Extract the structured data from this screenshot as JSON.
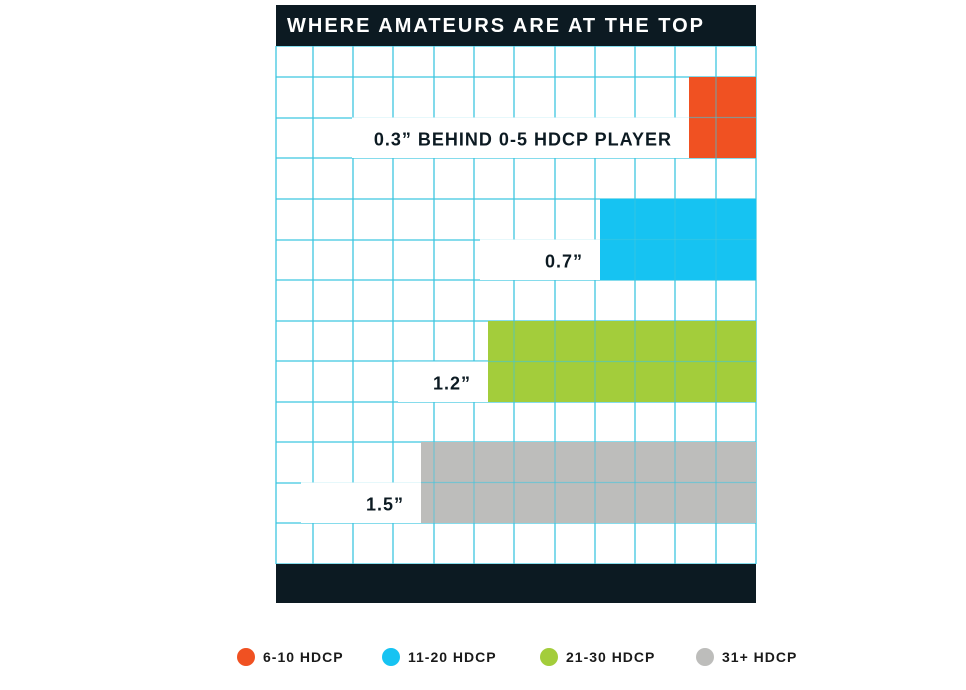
{
  "chart_data": {
    "type": "bar",
    "orientation": "horizontal",
    "title": "WHERE AMATEURS ARE AT THE TOP",
    "unit": "inches",
    "series": [
      {
        "name": "6-10 HDCP",
        "value": 0.3,
        "label": "0.3” BEHIND 0-5 HDCP PLAYER",
        "color": "#f05122"
      },
      {
        "name": "11-20 HDCP",
        "value": 0.7,
        "label": "0.7”",
        "color": "#16c3f2"
      },
      {
        "name": "21-30 HDCP",
        "value": 1.2,
        "label": "1.2”",
        "color": "#a3cd3b"
      },
      {
        "name": "31+ HDCP",
        "value": 1.5,
        "label": "1.5”",
        "color": "#bdbdbb"
      }
    ],
    "grid": true,
    "grid_color": "#3ec6e0",
    "header_color": "#0c1a22",
    "legend_position": "bottom"
  }
}
